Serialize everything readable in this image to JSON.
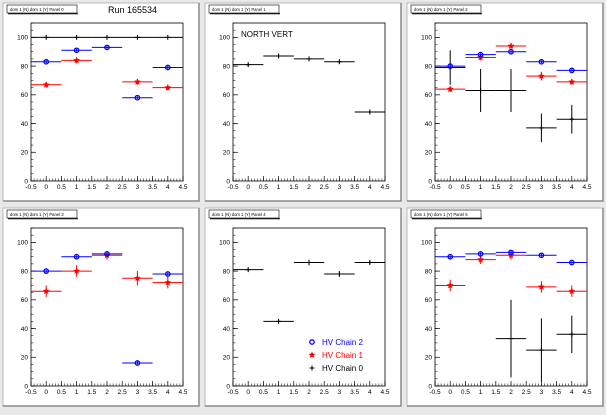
{
  "run_label": "Run 165534",
  "legend": {
    "items": [
      {
        "label": "HV Chain 2",
        "marker": "circle",
        "color": "#0000ff"
      },
      {
        "label": "HV Chain 1",
        "marker": "star",
        "color": "#ff0000"
      },
      {
        "label": "HV Chain 0",
        "marker": "cross",
        "color": "#000000"
      }
    ]
  },
  "colors": {
    "chain2": "#0000ff",
    "chain1": "#ff0000",
    "chain0": "#000000"
  },
  "chart_data": [
    {
      "type": "scatter",
      "pad_title": "dom 1 (N) dom 1 (Y) Panel 0",
      "annotation": "",
      "xlim": [
        -0.5,
        4.5
      ],
      "ylim": [
        0,
        110
      ],
      "x_ticks": [
        -0.5,
        0,
        0.5,
        1,
        1.5,
        2,
        2.5,
        3,
        3.5,
        4,
        4.5
      ],
      "y_ticks": [
        0,
        20,
        40,
        60,
        80,
        100
      ],
      "series": [
        {
          "color": "#000000",
          "marker": "cross",
          "points": [
            {
              "x": 0,
              "y": 100,
              "xerr": 0.5,
              "yerr": 0
            },
            {
              "x": 1,
              "y": 100,
              "xerr": 0.5,
              "yerr": 0
            },
            {
              "x": 2,
              "y": 100,
              "xerr": 0.5,
              "yerr": 0
            },
            {
              "x": 3,
              "y": 100,
              "xerr": 0.5,
              "yerr": 0
            },
            {
              "x": 4,
              "y": 100,
              "xerr": 0.5,
              "yerr": 0
            }
          ]
        },
        {
          "color": "#ff0000",
          "marker": "star",
          "points": [
            {
              "x": 0,
              "y": 67,
              "xerr": 0.5,
              "yerr": 2
            },
            {
              "x": 1,
              "y": 84,
              "xerr": 0.5,
              "yerr": 2
            },
            {
              "x": 3,
              "y": 69,
              "xerr": 0.5,
              "yerr": 2
            },
            {
              "x": 4,
              "y": 65,
              "xerr": 0.5,
              "yerr": 2
            }
          ]
        },
        {
          "color": "#0000ff",
          "marker": "circle",
          "points": [
            {
              "x": 0,
              "y": 83,
              "xerr": 0.5,
              "yerr": 1
            },
            {
              "x": 1,
              "y": 91,
              "xerr": 0.5,
              "yerr": 1
            },
            {
              "x": 2,
              "y": 93,
              "xerr": 0.5,
              "yerr": 1
            },
            {
              "x": 3,
              "y": 58,
              "xerr": 0.5,
              "yerr": 1
            },
            {
              "x": 4,
              "y": 79,
              "xerr": 0.5,
              "yerr": 1
            }
          ]
        }
      ]
    },
    {
      "type": "scatter",
      "pad_title": "dom 1 (N) dom 1 (Y) Panel 1",
      "annotation": "NORTH VERT",
      "xlim": [
        -0.5,
        4.5
      ],
      "ylim": [
        0,
        110
      ],
      "x_ticks": [
        -0.5,
        0,
        0.5,
        1,
        1.5,
        2,
        2.5,
        3,
        3.5,
        4,
        4.5
      ],
      "y_ticks": [
        0,
        20,
        40,
        60,
        80,
        100
      ],
      "series": [
        {
          "color": "#000000",
          "marker": "cross",
          "points": [
            {
              "x": 0,
              "y": 81,
              "xerr": 0.5,
              "yerr": 1
            },
            {
              "x": 1,
              "y": 87,
              "xerr": 0.5,
              "yerr": 1
            },
            {
              "x": 2,
              "y": 85,
              "xerr": 0.5,
              "yerr": 1
            },
            {
              "x": 3,
              "y": 83,
              "xerr": 0.5,
              "yerr": 1
            },
            {
              "x": 4,
              "y": 48,
              "xerr": 0.5,
              "yerr": 1
            }
          ]
        }
      ]
    },
    {
      "type": "scatter",
      "pad_title": "dom 1 (N) dom 1 (Y) Panel 2",
      "annotation": "",
      "xlim": [
        -0.5,
        4.5
      ],
      "ylim": [
        0,
        110
      ],
      "x_ticks": [
        -0.5,
        0,
        0.5,
        1,
        1.5,
        2,
        2.5,
        3,
        3.5,
        4,
        4.5
      ],
      "y_ticks": [
        0,
        20,
        40,
        60,
        80,
        100
      ],
      "series": [
        {
          "color": "#000000",
          "marker": "cross",
          "points": [
            {
              "x": 0,
              "y": 79,
              "xerr": 0.5,
              "yerr": 12
            },
            {
              "x": 1,
              "y": 63,
              "xerr": 0.5,
              "yerr": 15
            },
            {
              "x": 2,
              "y": 63,
              "xerr": 0.5,
              "yerr": 15
            },
            {
              "x": 3,
              "y": 37,
              "xerr": 0.5,
              "yerr": 10
            },
            {
              "x": 4,
              "y": 43,
              "xerr": 0.5,
              "yerr": 10
            }
          ]
        },
        {
          "color": "#ff0000",
          "marker": "star",
          "points": [
            {
              "x": 0,
              "y": 64,
              "xerr": 0.5,
              "yerr": 2
            },
            {
              "x": 1,
              "y": 86,
              "xerr": 0.5,
              "yerr": 2
            },
            {
              "x": 2,
              "y": 94,
              "xerr": 0.5,
              "yerr": 2
            },
            {
              "x": 3,
              "y": 73,
              "xerr": 0.5,
              "yerr": 3
            },
            {
              "x": 4,
              "y": 69,
              "xerr": 0.5,
              "yerr": 2
            }
          ]
        },
        {
          "color": "#0000ff",
          "marker": "circle",
          "points": [
            {
              "x": 0,
              "y": 80,
              "xerr": 0.5,
              "yerr": 1
            },
            {
              "x": 1,
              "y": 88,
              "xerr": 0.5,
              "yerr": 1
            },
            {
              "x": 2,
              "y": 90,
              "xerr": 0.5,
              "yerr": 1
            },
            {
              "x": 3,
              "y": 83,
              "xerr": 0.5,
              "yerr": 1
            },
            {
              "x": 4,
              "y": 77,
              "xerr": 0.5,
              "yerr": 1
            }
          ]
        }
      ]
    },
    {
      "type": "scatter",
      "pad_title": "dom 1 (N) dom 1 (Y) Panel 3",
      "annotation": "",
      "xlim": [
        -0.5,
        4.5
      ],
      "ylim": [
        0,
        110
      ],
      "x_ticks": [
        -0.5,
        0,
        0.5,
        1,
        1.5,
        2,
        2.5,
        3,
        3.5,
        4,
        4.5
      ],
      "y_ticks": [
        0,
        20,
        40,
        60,
        80,
        100
      ],
      "series": [
        {
          "color": "#ff0000",
          "marker": "star",
          "points": [
            {
              "x": 0,
              "y": 66,
              "xerr": 0.5,
              "yerr": 4
            },
            {
              "x": 1,
              "y": 80,
              "xerr": 0.5,
              "yerr": 4
            },
            {
              "x": 2,
              "y": 91,
              "xerr": 0.5,
              "yerr": 3
            },
            {
              "x": 3,
              "y": 75,
              "xerr": 0.5,
              "yerr": 5
            },
            {
              "x": 4,
              "y": 72,
              "xerr": 0.5,
              "yerr": 4
            }
          ]
        },
        {
          "color": "#0000ff",
          "marker": "circle",
          "points": [
            {
              "x": 0,
              "y": 80,
              "xerr": 0.5,
              "yerr": 1
            },
            {
              "x": 1,
              "y": 90,
              "xerr": 0.5,
              "yerr": 1
            },
            {
              "x": 2,
              "y": 92,
              "xerr": 0.5,
              "yerr": 1
            },
            {
              "x": 3,
              "y": 16,
              "xerr": 0.5,
              "yerr": 1
            },
            {
              "x": 4,
              "y": 78,
              "xerr": 0.5,
              "yerr": 1
            }
          ]
        }
      ]
    },
    {
      "type": "scatter",
      "pad_title": "dom 1 (N) dom 1 (Y) Panel 4",
      "annotation": "",
      "xlim": [
        -0.5,
        4.5
      ],
      "ylim": [
        0,
        110
      ],
      "x_ticks": [
        -0.5,
        0,
        0.5,
        1,
        1.5,
        2,
        2.5,
        3,
        3.5,
        4,
        4.5
      ],
      "y_ticks": [
        0,
        20,
        40,
        60,
        80,
        100
      ],
      "series": [
        {
          "color": "#000000",
          "marker": "cross",
          "points": [
            {
              "x": 0,
              "y": 81,
              "xerr": 0.5,
              "yerr": 1
            },
            {
              "x": 1,
              "y": 45,
              "xerr": 0.5,
              "yerr": 1
            },
            {
              "x": 2,
              "y": 86,
              "xerr": 0.5,
              "yerr": 2
            },
            {
              "x": 3,
              "y": 78,
              "xerr": 0.5,
              "yerr": 2
            },
            {
              "x": 4,
              "y": 86,
              "xerr": 0.5,
              "yerr": 1
            }
          ]
        }
      ]
    },
    {
      "type": "scatter",
      "pad_title": "dom 1 (N) dom 1 (Y) Panel 5",
      "annotation": "",
      "xlim": [
        -0.5,
        4.5
      ],
      "ylim": [
        0,
        110
      ],
      "x_ticks": [
        -0.5,
        0,
        0.5,
        1,
        1.5,
        2,
        2.5,
        3,
        3.5,
        4,
        4.5
      ],
      "y_ticks": [
        0,
        20,
        40,
        60,
        80,
        100
      ],
      "series": [
        {
          "color": "#000000",
          "marker": "cross",
          "points": [
            {
              "x": 2,
              "y": 33,
              "xerr": 0.5,
              "yerr": 27
            },
            {
              "x": 3,
              "y": 25,
              "xerr": 0.5,
              "yerr": 22
            },
            {
              "x": 4,
              "y": 36,
              "xerr": 0.5,
              "yerr": 13
            }
          ]
        },
        {
          "color": "#ff0000",
          "marker": "star",
          "points": [
            {
              "x": 0,
              "y": 70,
              "xerr": 0.5,
              "yerr": 4
            },
            {
              "x": 1,
              "y": 88,
              "xerr": 0.5,
              "yerr": 3
            },
            {
              "x": 2,
              "y": 91,
              "xerr": 0.5,
              "yerr": 3
            },
            {
              "x": 3,
              "y": 69,
              "xerr": 0.5,
              "yerr": 4
            },
            {
              "x": 4,
              "y": 66,
              "xerr": 0.5,
              "yerr": 4
            }
          ]
        },
        {
          "color": "#0000ff",
          "marker": "circle",
          "points": [
            {
              "x": 0,
              "y": 90,
              "xerr": 0.5,
              "yerr": 1
            },
            {
              "x": 1,
              "y": 92,
              "xerr": 0.5,
              "yerr": 1
            },
            {
              "x": 2,
              "y": 93,
              "xerr": 0.5,
              "yerr": 1
            },
            {
              "x": 3,
              "y": 91,
              "xerr": 0.5,
              "yerr": 1
            },
            {
              "x": 4,
              "y": 86,
              "xerr": 0.5,
              "yerr": 1
            }
          ]
        }
      ]
    }
  ]
}
